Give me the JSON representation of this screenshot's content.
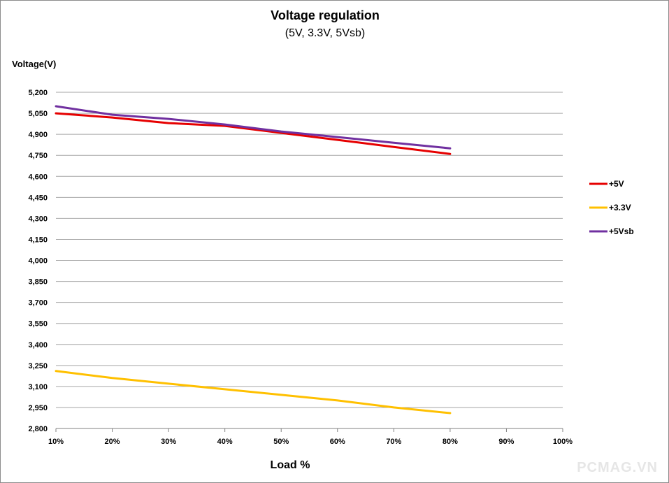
{
  "chart_data": {
    "type": "line",
    "title": "Voltage regulation",
    "subtitle": "(5V, 3.3V, 5Vsb)",
    "ylabel": "Voltage(V)",
    "xlabel": "Load %",
    "x_categories": [
      "10%",
      "20%",
      "30%",
      "40%",
      "50%",
      "60%",
      "70%",
      "80%",
      "90%",
      "100%"
    ],
    "y_ticks": [
      "2,800",
      "2,950",
      "3,100",
      "3,250",
      "3,400",
      "3,550",
      "3,700",
      "3,850",
      "4,000",
      "4,150",
      "4,300",
      "4,450",
      "4,600",
      "4,750",
      "4,900",
      "5,050",
      "5,200"
    ],
    "ylim": [
      2.8,
      5.2
    ],
    "grid": true,
    "legend_position": "right",
    "series": [
      {
        "name": "+5V",
        "color": "#e60000",
        "values": [
          5.05,
          5.02,
          4.98,
          4.96,
          4.91,
          4.86,
          4.81,
          4.76
        ]
      },
      {
        "name": "+3.3V",
        "color": "#ffc000",
        "values": [
          3.21,
          3.16,
          3.12,
          3.08,
          3.04,
          3.0,
          2.95,
          2.91
        ]
      },
      {
        "name": "+5Vsb",
        "color": "#7030a0",
        "values": [
          5.1,
          5.04,
          5.01,
          4.97,
          4.92,
          4.88,
          4.84,
          4.8
        ]
      }
    ]
  },
  "watermark": "PCMAG.VN"
}
